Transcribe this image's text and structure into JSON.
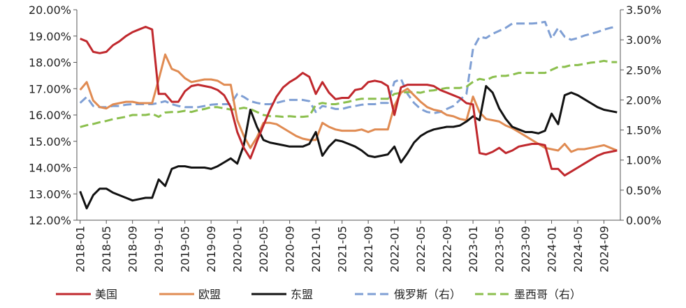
{
  "chart_data": {
    "type": "line",
    "title": "",
    "x": [
      "2018-01",
      "2018-02",
      "2018-03",
      "2018-04",
      "2018-05",
      "2018-06",
      "2018-07",
      "2018-08",
      "2018-09",
      "2018-10",
      "2018-11",
      "2018-12",
      "2019-01",
      "2019-02",
      "2019-03",
      "2019-04",
      "2019-05",
      "2019-06",
      "2019-07",
      "2019-08",
      "2019-09",
      "2019-10",
      "2019-11",
      "2019-12",
      "2020-01",
      "2020-02",
      "2020-03",
      "2020-04",
      "2020-05",
      "2020-06",
      "2020-07",
      "2020-08",
      "2020-09",
      "2020-10",
      "2020-11",
      "2020-12",
      "2021-01",
      "2021-02",
      "2021-03",
      "2021-04",
      "2021-05",
      "2021-06",
      "2021-07",
      "2021-08",
      "2021-09",
      "2021-10",
      "2021-11",
      "2021-12",
      "2022-01",
      "2022-02",
      "2022-03",
      "2022-04",
      "2022-05",
      "2022-06",
      "2022-07",
      "2022-08",
      "2022-09",
      "2022-10",
      "2022-11",
      "2022-12",
      "2023-01",
      "2023-02",
      "2023-03",
      "2023-04",
      "2023-05",
      "2023-06",
      "2023-07",
      "2023-08",
      "2023-09",
      "2023-10",
      "2023-11",
      "2023-12",
      "2024-01",
      "2024-02",
      "2024-03",
      "2024-04",
      "2024-05",
      "2024-06",
      "2024-07",
      "2024-08",
      "2024-09",
      "2024-10",
      "2024-11"
    ],
    "x_tick_labels": [
      "2018-01",
      "2018-05",
      "2018-09",
      "2019-01",
      "2019-05",
      "2019-09",
      "2020-01",
      "2020-05",
      "2020-09",
      "2021-01",
      "2021-05",
      "2021-09",
      "2022-01",
      "2022-05",
      "2022-09",
      "2023-01",
      "2023-05",
      "2023-09",
      "2024-01",
      "2024-05",
      "2024-09"
    ],
    "y_left": {
      "ylim": [
        12,
        20
      ],
      "ticks": [
        "12.00%",
        "13.00%",
        "14.00%",
        "15.00%",
        "16.00%",
        "17.00%",
        "18.00%",
        "19.00%",
        "20.00%"
      ]
    },
    "y_right": {
      "ylim": [
        0,
        3.5
      ],
      "ticks": [
        "0.00%",
        "0.50%",
        "1.00%",
        "1.50%",
        "2.00%",
        "2.50%",
        "3.00%",
        "3.50%"
      ]
    },
    "legend_position": "bottom",
    "series": [
      {
        "name": "美国",
        "axis": "left",
        "color": "#c0282d",
        "dash": false,
        "values": [
          18.9,
          18.8,
          18.4,
          18.35,
          18.4,
          18.65,
          18.8,
          19.0,
          19.15,
          19.25,
          19.35,
          19.25,
          16.8,
          16.8,
          16.5,
          16.5,
          16.9,
          17.1,
          17.15,
          17.1,
          17.05,
          16.95,
          16.75,
          16.3,
          15.35,
          14.75,
          14.35,
          15.0,
          15.6,
          16.2,
          16.7,
          17.05,
          17.25,
          17.4,
          17.6,
          17.45,
          16.8,
          17.25,
          16.85,
          16.6,
          16.65,
          16.65,
          16.95,
          17.0,
          17.25,
          17.3,
          17.25,
          17.1,
          16.0,
          17.05,
          17.15,
          17.15,
          17.15,
          17.15,
          17.1,
          16.95,
          16.85,
          16.75,
          16.65,
          16.45,
          16.4,
          14.55,
          14.5,
          14.6,
          14.75,
          14.55,
          14.65,
          14.8,
          14.85,
          14.9,
          14.9,
          14.85,
          13.95,
          13.95,
          13.7,
          13.85,
          14.0,
          14.15,
          14.3,
          14.45,
          14.55,
          14.6,
          14.65
        ]
      },
      {
        "name": "欧盟",
        "axis": "left",
        "color": "#e08b52",
        "dash": false,
        "values": [
          16.95,
          17.25,
          16.55,
          16.3,
          16.25,
          16.4,
          16.45,
          16.5,
          16.5,
          16.45,
          16.45,
          16.45,
          17.35,
          18.3,
          17.75,
          17.65,
          17.4,
          17.25,
          17.3,
          17.35,
          17.35,
          17.3,
          17.15,
          17.15,
          15.8,
          15.2,
          14.75,
          15.15,
          15.7,
          15.7,
          15.65,
          15.5,
          15.35,
          15.2,
          15.1,
          15.05,
          15.05,
          15.7,
          15.55,
          15.45,
          15.4,
          15.4,
          15.4,
          15.45,
          15.35,
          15.45,
          15.45,
          15.45,
          16.35,
          16.85,
          17.0,
          16.75,
          16.5,
          16.3,
          16.2,
          16.15,
          16.0,
          15.95,
          15.85,
          15.8,
          16.7,
          16.1,
          15.85,
          15.8,
          15.75,
          15.6,
          15.5,
          15.35,
          15.2,
          15.05,
          14.9,
          14.75,
          14.7,
          14.65,
          14.9,
          14.6,
          14.7,
          14.7,
          14.75,
          14.8,
          14.85,
          14.75,
          14.65
        ]
      },
      {
        "name": "东盟",
        "axis": "left",
        "color": "#111111",
        "dash": false,
        "values": [
          13.1,
          12.45,
          12.95,
          13.2,
          13.2,
          13.05,
          12.95,
          12.85,
          12.75,
          12.8,
          12.85,
          12.85,
          13.55,
          13.3,
          13.95,
          14.05,
          14.05,
          14.0,
          14.0,
          14.0,
          13.95,
          14.05,
          14.2,
          14.35,
          14.15,
          14.85,
          16.2,
          15.55,
          15.05,
          14.95,
          14.9,
          14.85,
          14.8,
          14.8,
          14.8,
          14.9,
          15.35,
          14.45,
          14.8,
          15.05,
          15.0,
          14.9,
          14.8,
          14.65,
          14.45,
          14.4,
          14.45,
          14.5,
          14.8,
          14.2,
          14.55,
          14.95,
          15.2,
          15.35,
          15.45,
          15.5,
          15.55,
          15.55,
          15.6,
          15.75,
          15.95,
          15.8,
          17.1,
          16.85,
          16.25,
          15.85,
          15.55,
          15.45,
          15.35,
          15.35,
          15.3,
          15.4,
          16.05,
          15.65,
          16.75,
          16.85,
          16.75,
          16.6,
          16.45,
          16.3,
          16.2,
          16.15,
          16.1
        ]
      },
      {
        "name": "俄罗斯（右）",
        "axis": "right",
        "color": "#7f9fd4",
        "dash": true,
        "values": [
          1.95,
          2.05,
          1.9,
          1.88,
          1.88,
          1.9,
          1.9,
          1.92,
          1.93,
          1.93,
          1.93,
          1.93,
          1.95,
          1.98,
          1.93,
          1.9,
          1.88,
          1.88,
          1.88,
          1.9,
          1.92,
          1.93,
          1.93,
          1.93,
          2.1,
          2.05,
          1.98,
          1.95,
          1.93,
          1.93,
          1.95,
          1.98,
          2.0,
          2.0,
          2.0,
          1.98,
          1.8,
          1.9,
          1.88,
          1.85,
          1.85,
          1.88,
          1.9,
          1.92,
          1.93,
          1.93,
          1.95,
          1.95,
          2.3,
          2.35,
          2.1,
          1.95,
          1.85,
          1.8,
          1.78,
          1.8,
          1.85,
          1.9,
          2.0,
          2.1,
          2.85,
          3.05,
          3.03,
          3.1,
          3.15,
          3.2,
          3.27,
          3.27,
          3.27,
          3.27,
          3.28,
          3.3,
          3.02,
          3.2,
          3.05,
          3.0,
          3.03,
          3.07,
          3.1,
          3.13,
          3.17,
          3.2,
          3.22
        ]
      },
      {
        "name": "墨西哥（右）",
        "axis": "right",
        "color": "#8bbf4d",
        "dash": true,
        "values": [
          1.55,
          1.58,
          1.6,
          1.63,
          1.65,
          1.68,
          1.7,
          1.72,
          1.75,
          1.75,
          1.75,
          1.77,
          1.72,
          1.79,
          1.8,
          1.8,
          1.82,
          1.8,
          1.83,
          1.85,
          1.88,
          1.88,
          1.86,
          1.84,
          1.85,
          1.87,
          1.85,
          1.8,
          1.75,
          1.73,
          1.73,
          1.72,
          1.73,
          1.72,
          1.72,
          1.73,
          1.92,
          1.95,
          1.93,
          1.93,
          1.95,
          1.97,
          2.0,
          2.02,
          2.02,
          2.02,
          2.02,
          2.02,
          2.1,
          2.12,
          2.13,
          2.13,
          2.12,
          2.15,
          2.16,
          2.18,
          2.2,
          2.2,
          2.2,
          2.22,
          2.3,
          2.35,
          2.33,
          2.38,
          2.4,
          2.4,
          2.42,
          2.45,
          2.45,
          2.45,
          2.45,
          2.45,
          2.5,
          2.55,
          2.55,
          2.58,
          2.58,
          2.6,
          2.62,
          2.63,
          2.65,
          2.63,
          2.63
        ]
      }
    ]
  }
}
